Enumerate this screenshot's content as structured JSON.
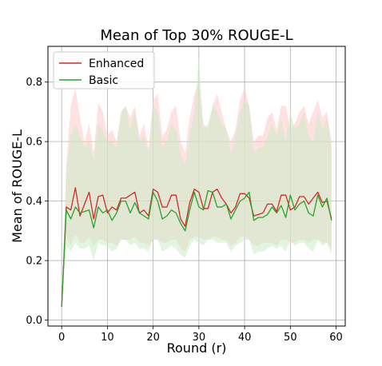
{
  "chart_data": {
    "type": "line",
    "title": "Mean of Top 30% ROUGE-L",
    "xlabel": "Round (r)",
    "ylabel": "Mean of ROUGE-L",
    "xlim": [
      -3,
      62
    ],
    "ylim": [
      -0.02,
      0.92
    ],
    "xticks": [
      0,
      10,
      20,
      30,
      40,
      50,
      60
    ],
    "yticks": [
      0.0,
      0.2,
      0.4,
      0.6,
      0.8
    ],
    "ytick_labels": [
      "0.0",
      "0.2",
      "0.4",
      "0.6",
      "0.8"
    ],
    "grid": true,
    "legend_position": "top-left",
    "x": [
      0,
      1,
      2,
      3,
      4,
      5,
      6,
      7,
      8,
      9,
      10,
      11,
      12,
      13,
      14,
      15,
      16,
      17,
      18,
      19,
      20,
      21,
      22,
      23,
      24,
      25,
      26,
      27,
      28,
      29,
      30,
      31,
      32,
      33,
      34,
      35,
      36,
      37,
      38,
      39,
      40,
      41,
      42,
      43,
      44,
      45,
      46,
      47,
      48,
      49,
      50,
      51,
      52,
      53,
      54,
      55,
      56,
      57,
      58,
      59
    ],
    "series": [
      {
        "name": "Enhanced",
        "color": "#d62728",
        "band_color": "#ffc8c8",
        "values": [
          0.045,
          0.38,
          0.37,
          0.445,
          0.35,
          0.39,
          0.43,
          0.34,
          0.415,
          0.42,
          0.36,
          0.38,
          0.37,
          0.41,
          0.41,
          0.42,
          0.43,
          0.36,
          0.37,
          0.35,
          0.44,
          0.43,
          0.38,
          0.38,
          0.42,
          0.42,
          0.34,
          0.315,
          0.395,
          0.44,
          0.43,
          0.375,
          0.375,
          0.43,
          0.44,
          0.41,
          0.39,
          0.36,
          0.38,
          0.425,
          0.425,
          0.41,
          0.35,
          0.355,
          0.36,
          0.39,
          0.39,
          0.365,
          0.42,
          0.42,
          0.37,
          0.38,
          0.415,
          0.415,
          0.39,
          0.41,
          0.43,
          0.395,
          0.4,
          0.34
        ],
        "lower": [
          0.045,
          0.28,
          0.25,
          0.29,
          0.26,
          0.26,
          0.28,
          0.25,
          0.27,
          0.27,
          0.26,
          0.26,
          0.25,
          0.27,
          0.27,
          0.27,
          0.28,
          0.26,
          0.26,
          0.25,
          0.27,
          0.27,
          0.26,
          0.26,
          0.27,
          0.27,
          0.24,
          0.23,
          0.27,
          0.28,
          0.28,
          0.27,
          0.27,
          0.28,
          0.28,
          0.27,
          0.27,
          0.25,
          0.26,
          0.28,
          0.28,
          0.27,
          0.25,
          0.25,
          0.26,
          0.26,
          0.26,
          0.25,
          0.27,
          0.27,
          0.26,
          0.26,
          0.27,
          0.27,
          0.26,
          0.27,
          0.27,
          0.26,
          0.26,
          0.24
        ],
        "upper": [
          0.045,
          0.52,
          0.72,
          0.78,
          0.68,
          0.6,
          0.66,
          0.56,
          0.73,
          0.7,
          0.62,
          0.64,
          0.6,
          0.7,
          0.72,
          0.68,
          0.72,
          0.62,
          0.66,
          0.58,
          0.74,
          0.76,
          0.62,
          0.64,
          0.7,
          0.72,
          0.6,
          0.56,
          0.68,
          0.76,
          0.8,
          0.66,
          0.64,
          0.72,
          0.76,
          0.7,
          0.64,
          0.6,
          0.64,
          0.74,
          0.78,
          0.72,
          0.6,
          0.62,
          0.62,
          0.68,
          0.7,
          0.64,
          0.72,
          0.72,
          0.64,
          0.66,
          0.7,
          0.72,
          0.66,
          0.7,
          0.74,
          0.68,
          0.7,
          0.6
        ]
      },
      {
        "name": "Basic",
        "color": "#2ca02c",
        "band_color": "#c8ecc8",
        "values": [
          0.045,
          0.37,
          0.34,
          0.38,
          0.36,
          0.365,
          0.37,
          0.31,
          0.38,
          0.36,
          0.37,
          0.335,
          0.36,
          0.4,
          0.4,
          0.36,
          0.395,
          0.36,
          0.35,
          0.34,
          0.43,
          0.4,
          0.34,
          0.35,
          0.37,
          0.36,
          0.325,
          0.3,
          0.37,
          0.43,
          0.38,
          0.37,
          0.435,
          0.43,
          0.38,
          0.38,
          0.39,
          0.34,
          0.37,
          0.4,
          0.41,
          0.43,
          0.335,
          0.345,
          0.345,
          0.355,
          0.38,
          0.36,
          0.385,
          0.345,
          0.42,
          0.37,
          0.39,
          0.4,
          0.36,
          0.35,
          0.42,
          0.38,
          0.41,
          0.335
        ],
        "lower": [
          0.045,
          0.25,
          0.23,
          0.26,
          0.24,
          0.24,
          0.25,
          0.2,
          0.26,
          0.25,
          0.25,
          0.23,
          0.24,
          0.27,
          0.27,
          0.25,
          0.26,
          0.24,
          0.24,
          0.23,
          0.27,
          0.27,
          0.23,
          0.24,
          0.25,
          0.24,
          0.22,
          0.21,
          0.25,
          0.27,
          0.26,
          0.25,
          0.27,
          0.27,
          0.26,
          0.26,
          0.26,
          0.23,
          0.25,
          0.26,
          0.27,
          0.27,
          0.22,
          0.23,
          0.23,
          0.24,
          0.25,
          0.24,
          0.25,
          0.23,
          0.27,
          0.25,
          0.26,
          0.26,
          0.24,
          0.23,
          0.27,
          0.25,
          0.26,
          0.22
        ],
        "upper": [
          0.045,
          0.5,
          0.62,
          0.66,
          0.62,
          0.58,
          0.6,
          0.54,
          0.66,
          0.64,
          0.6,
          0.6,
          0.58,
          0.7,
          0.72,
          0.64,
          0.7,
          0.6,
          0.62,
          0.56,
          0.72,
          0.7,
          0.58,
          0.6,
          0.66,
          0.64,
          0.56,
          0.52,
          0.62,
          0.7,
          0.88,
          0.64,
          0.66,
          0.72,
          0.7,
          0.66,
          0.64,
          0.56,
          0.62,
          0.7,
          0.74,
          0.72,
          0.56,
          0.58,
          0.58,
          0.62,
          0.66,
          0.62,
          0.68,
          0.6,
          0.7,
          0.64,
          0.66,
          0.7,
          0.62,
          0.6,
          0.7,
          0.64,
          0.68,
          0.58
        ]
      }
    ]
  }
}
